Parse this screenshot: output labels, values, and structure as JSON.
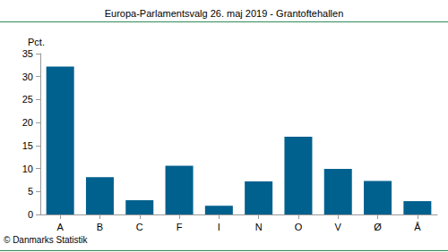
{
  "chart_data": {
    "type": "bar",
    "title": "Europa-Parlamentsvalg 26. maj 2019 - Grantoftehallen",
    "y_label": "Pct.",
    "source": "© Danmarks Statistik",
    "categories": [
      "A",
      "B",
      "C",
      "F",
      "I",
      "N",
      "O",
      "V",
      "Ø",
      "Å"
    ],
    "values": [
      32.2,
      8.1,
      3.1,
      10.6,
      1.9,
      7.2,
      16.9,
      9.9,
      7.3,
      2.9
    ],
    "color": "#00608e",
    "ylim": [
      0,
      35
    ],
    "yticks": [
      0,
      5,
      10,
      15,
      20,
      25,
      30,
      35
    ],
    "grid": false
  }
}
